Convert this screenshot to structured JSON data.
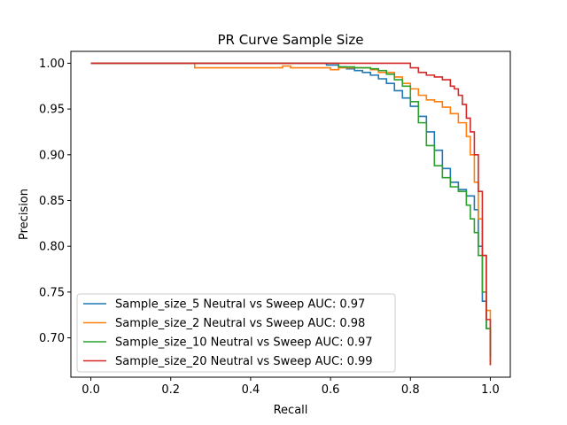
{
  "chart_data": {
    "type": "line",
    "title": "PR Curve Sample Size",
    "xlabel": "Recall",
    "ylabel": "Precision",
    "xlim": [
      -0.05,
      1.05
    ],
    "ylim": [
      0.657,
      1.013
    ],
    "x_ticks": [
      0.0,
      0.2,
      0.4,
      0.6,
      0.8,
      1.0
    ],
    "x_tick_labels": [
      "0.0",
      "0.2",
      "0.4",
      "0.6",
      "0.8",
      "1.0"
    ],
    "y_ticks": [
      0.7,
      0.75,
      0.8,
      0.85,
      0.9,
      0.95,
      1.0
    ],
    "y_tick_labels": [
      "0.70",
      "0.75",
      "0.80",
      "0.85",
      "0.90",
      "0.95",
      "1.00"
    ],
    "grid": false,
    "legend_position": "lower-left",
    "series": [
      {
        "name": "Sample_size_5 Neutral vs Sweep AUC: 0.97",
        "color": "#1f77b4",
        "x": [
          0.0,
          0.58,
          0.59,
          0.62,
          0.64,
          0.66,
          0.68,
          0.7,
          0.72,
          0.74,
          0.76,
          0.78,
          0.8,
          0.82,
          0.84,
          0.86,
          0.88,
          0.9,
          0.92,
          0.94,
          0.96,
          0.97,
          0.98,
          0.99,
          1.0
        ],
        "y": [
          1.0,
          1.0,
          0.998,
          0.996,
          0.994,
          0.992,
          0.99,
          0.987,
          0.983,
          0.978,
          0.97,
          0.962,
          0.953,
          0.942,
          0.925,
          0.905,
          0.885,
          0.87,
          0.862,
          0.855,
          0.84,
          0.8,
          0.74,
          0.71,
          0.68
        ]
      },
      {
        "name": "Sample_size_2 Neutral vs Sweep AUC: 0.98",
        "color": "#ff7f0e",
        "x": [
          0.0,
          0.25,
          0.26,
          0.48,
          0.5,
          0.6,
          0.62,
          0.7,
          0.72,
          0.76,
          0.78,
          0.8,
          0.82,
          0.84,
          0.86,
          0.88,
          0.9,
          0.92,
          0.94,
          0.95,
          0.96,
          0.97,
          0.98,
          0.99,
          1.0
        ],
        "y": [
          1.0,
          1.0,
          0.995,
          0.997,
          0.995,
          0.993,
          0.995,
          0.993,
          0.99,
          0.985,
          0.978,
          0.972,
          0.965,
          0.96,
          0.958,
          0.952,
          0.945,
          0.935,
          0.92,
          0.9,
          0.87,
          0.83,
          0.79,
          0.73,
          0.67
        ]
      },
      {
        "name": "Sample_size_10 Neutral vs Sweep AUC: 0.97",
        "color": "#2ca02c",
        "x": [
          0.0,
          0.6,
          0.62,
          0.66,
          0.7,
          0.72,
          0.74,
          0.76,
          0.78,
          0.8,
          0.82,
          0.84,
          0.86,
          0.88,
          0.9,
          0.92,
          0.94,
          0.95,
          0.96,
          0.97,
          0.98,
          0.99,
          1.0
        ],
        "y": [
          1.0,
          1.0,
          0.996,
          0.995,
          0.994,
          0.992,
          0.988,
          0.982,
          0.975,
          0.958,
          0.935,
          0.91,
          0.888,
          0.875,
          0.865,
          0.86,
          0.845,
          0.83,
          0.815,
          0.79,
          0.75,
          0.71,
          0.68
        ]
      },
      {
        "name": "Sample_size_20 Neutral vs Sweep AUC: 0.99",
        "color": "#d62728",
        "x": [
          0.0,
          0.78,
          0.8,
          0.82,
          0.84,
          0.86,
          0.88,
          0.9,
          0.91,
          0.92,
          0.93,
          0.94,
          0.95,
          0.96,
          0.97,
          0.98,
          0.99,
          1.0
        ],
        "y": [
          1.0,
          1.0,
          0.995,
          0.99,
          0.987,
          0.985,
          0.982,
          0.975,
          0.972,
          0.965,
          0.955,
          0.94,
          0.925,
          0.9,
          0.86,
          0.79,
          0.72,
          0.67
        ]
      }
    ]
  }
}
